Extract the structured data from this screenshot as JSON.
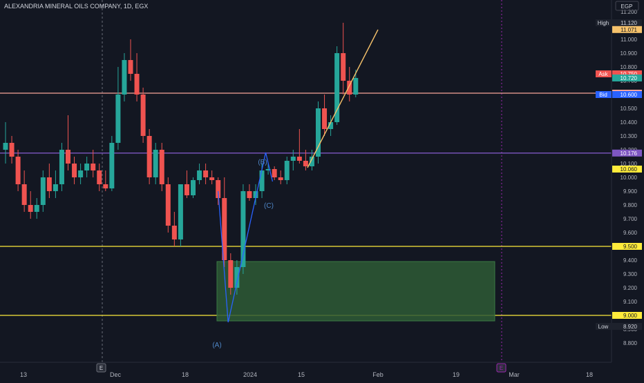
{
  "header": {
    "symbol_title": "ALEXANDRIA MINERAL OILS COMPANY, 1D, EGX",
    "currency": "EGP"
  },
  "colors": {
    "background": "#131722",
    "up": "#26a69a",
    "down": "#ef5350",
    "axis_text": "#b2b5be",
    "grid": "#1e222d",
    "yellow_line": "#ffeb3b",
    "purple_line": "#7e57c2",
    "salmon_line": "#f7a59a",
    "zone_fill": "#2e5a35",
    "wave_line": "#2962ff",
    "trend_line": "#f6c26b"
  },
  "chart_data": {
    "type": "candlestick",
    "y_axis": {
      "range": [
        8.75,
        11.3
      ],
      "ticks": [
        "11.200",
        "11.100",
        "11.000",
        "10.900",
        "10.800",
        "10.700",
        "10.600",
        "10.500",
        "10.400",
        "10.300",
        "10.200",
        "10.100",
        "10.000",
        "9.900",
        "9.800",
        "9.700",
        "9.600",
        "9.500",
        "9.400",
        "9.300",
        "9.200",
        "9.100",
        "9.000",
        "8.900",
        "8.800"
      ]
    },
    "x_axis": {
      "ticks": [
        "13",
        "Dec",
        "18",
        "2024",
        "15",
        "Feb",
        "19",
        "Mar",
        "18"
      ],
      "event_markers": [
        "E",
        "E"
      ]
    },
    "candles": [
      {
        "o": 10.2,
        "h": 10.4,
        "l": 10.1,
        "c": 10.25
      },
      {
        "o": 10.25,
        "h": 10.3,
        "l": 10.1,
        "c": 10.15
      },
      {
        "o": 10.15,
        "h": 10.2,
        "l": 9.9,
        "c": 9.95
      },
      {
        "o": 9.95,
        "h": 10.05,
        "l": 9.75,
        "c": 9.8
      },
      {
        "o": 9.8,
        "h": 9.9,
        "l": 9.7,
        "c": 9.75
      },
      {
        "o": 9.75,
        "h": 9.85,
        "l": 9.7,
        "c": 9.8
      },
      {
        "o": 9.8,
        "h": 10.05,
        "l": 9.75,
        "c": 10.0
      },
      {
        "o": 10.0,
        "h": 10.1,
        "l": 9.85,
        "c": 9.9
      },
      {
        "o": 9.9,
        "h": 10.05,
        "l": 9.85,
        "c": 9.95
      },
      {
        "o": 9.95,
        "h": 10.25,
        "l": 9.9,
        "c": 10.2
      },
      {
        "o": 10.2,
        "h": 10.45,
        "l": 10.05,
        "c": 10.1
      },
      {
        "o": 10.1,
        "h": 10.15,
        "l": 9.95,
        "c": 10.0
      },
      {
        "o": 10.0,
        "h": 10.1,
        "l": 9.95,
        "c": 10.05
      },
      {
        "o": 10.05,
        "h": 10.15,
        "l": 10.0,
        "c": 10.1
      },
      {
        "o": 10.1,
        "h": 10.2,
        "l": 10.0,
        "c": 10.05
      },
      {
        "o": 10.05,
        "h": 10.1,
        "l": 9.9,
        "c": 9.95
      },
      {
        "o": 9.95,
        "h": 10.05,
        "l": 9.9,
        "c": 9.92
      },
      {
        "o": 9.92,
        "h": 10.3,
        "l": 9.9,
        "c": 10.25
      },
      {
        "o": 10.25,
        "h": 10.8,
        "l": 10.2,
        "c": 10.6
      },
      {
        "o": 10.6,
        "h": 10.9,
        "l": 10.55,
        "c": 10.85
      },
      {
        "o": 10.85,
        "h": 11.0,
        "l": 10.7,
        "c": 10.75
      },
      {
        "o": 10.75,
        "h": 10.9,
        "l": 10.55,
        "c": 10.6
      },
      {
        "o": 10.6,
        "h": 10.65,
        "l": 10.25,
        "c": 10.3
      },
      {
        "o": 10.3,
        "h": 10.35,
        "l": 9.95,
        "c": 10.0
      },
      {
        "o": 10.0,
        "h": 10.25,
        "l": 9.95,
        "c": 10.2
      },
      {
        "o": 10.2,
        "h": 10.25,
        "l": 9.9,
        "c": 9.95
      },
      {
        "o": 9.95,
        "h": 10.0,
        "l": 9.6,
        "c": 9.65
      },
      {
        "o": 9.65,
        "h": 9.75,
        "l": 9.5,
        "c": 9.55
      },
      {
        "o": 9.55,
        "h": 9.95,
        "l": 9.5,
        "c": 9.95
      },
      {
        "o": 9.95,
        "h": 10.05,
        "l": 9.85,
        "c": 9.87
      },
      {
        "o": 9.87,
        "h": 10.0,
        "l": 9.85,
        "c": 9.98
      },
      {
        "o": 9.98,
        "h": 10.1,
        "l": 9.95,
        "c": 10.05
      },
      {
        "o": 10.05,
        "h": 10.1,
        "l": 9.95,
        "c": 10.0
      },
      {
        "o": 10.0,
        "h": 10.05,
        "l": 9.95,
        "c": 9.98
      },
      {
        "o": 9.98,
        "h": 10.0,
        "l": 9.8,
        "c": 9.85
      },
      {
        "o": 9.85,
        "h": 10.0,
        "l": 9.35,
        "c": 9.4
      },
      {
        "o": 9.4,
        "h": 9.45,
        "l": 9.15,
        "c": 9.2
      },
      {
        "o": 9.2,
        "h": 9.4,
        "l": 9.15,
        "c": 9.35
      },
      {
        "o": 9.35,
        "h": 9.95,
        "l": 9.3,
        "c": 9.9
      },
      {
        "o": 9.9,
        "h": 9.95,
        "l": 9.83,
        "c": 9.85
      },
      {
        "o": 9.85,
        "h": 9.95,
        "l": 9.8,
        "c": 9.9
      },
      {
        "o": 9.9,
        "h": 10.1,
        "l": 9.85,
        "c": 10.05
      },
      {
        "o": 10.05,
        "h": 10.1,
        "l": 10.02,
        "c": 10.06
      },
      {
        "o": 10.06,
        "h": 10.08,
        "l": 9.98,
        "c": 10.0
      },
      {
        "o": 10.0,
        "h": 10.05,
        "l": 9.95,
        "c": 9.98
      },
      {
        "o": 9.98,
        "h": 10.15,
        "l": 9.95,
        "c": 10.12
      },
      {
        "o": 10.12,
        "h": 10.2,
        "l": 10.05,
        "c": 10.15
      },
      {
        "o": 10.15,
        "h": 10.35,
        "l": 10.1,
        "c": 10.12
      },
      {
        "o": 10.12,
        "h": 10.2,
        "l": 10.05,
        "c": 10.08
      },
      {
        "o": 10.08,
        "h": 10.2,
        "l": 10.05,
        "c": 10.15
      },
      {
        "o": 10.15,
        "h": 10.55,
        "l": 10.1,
        "c": 10.5
      },
      {
        "o": 10.5,
        "h": 10.6,
        "l": 10.3,
        "c": 10.35
      },
      {
        "o": 10.35,
        "h": 10.45,
        "l": 10.3,
        "c": 10.4
      },
      {
        "o": 10.4,
        "h": 10.95,
        "l": 10.38,
        "c": 10.9
      },
      {
        "o": 10.9,
        "h": 11.12,
        "l": 10.6,
        "c": 10.7
      },
      {
        "o": 10.7,
        "h": 10.8,
        "l": 10.55,
        "c": 10.6
      },
      {
        "o": 10.6,
        "h": 10.78,
        "l": 10.58,
        "c": 10.72
      }
    ],
    "horizontal_lines": [
      {
        "value": 10.61,
        "label": "10.610",
        "color": "#f7a59a"
      },
      {
        "value": 10.176,
        "label": "10.176",
        "color": "#7e57c2"
      },
      {
        "value": 9.5,
        "label": "9.500",
        "color": "#ffeb3b"
      },
      {
        "value": 9.0,
        "label": "9.000",
        "color": "#ffeb3b"
      }
    ],
    "price_badges": [
      {
        "tag": "High",
        "value": "11.120",
        "price": 11.12
      },
      {
        "tag": "",
        "value": "11.071",
        "price": 11.071
      },
      {
        "tag": "Ask",
        "value": "10.750",
        "price": 10.75
      },
      {
        "tag": "",
        "value": "10.720",
        "price": 10.72
      },
      {
        "tag": "Bid",
        "value": "10.600",
        "price": 10.6
      },
      {
        "tag": "",
        "value": "10.060",
        "price": 10.06
      },
      {
        "tag": "Low",
        "value": "8.920",
        "price": 8.92
      }
    ],
    "wave_labels": [
      "(A)",
      "(B)",
      "(C)"
    ],
    "zone": {
      "top": 9.39,
      "bottom": 8.96
    }
  }
}
